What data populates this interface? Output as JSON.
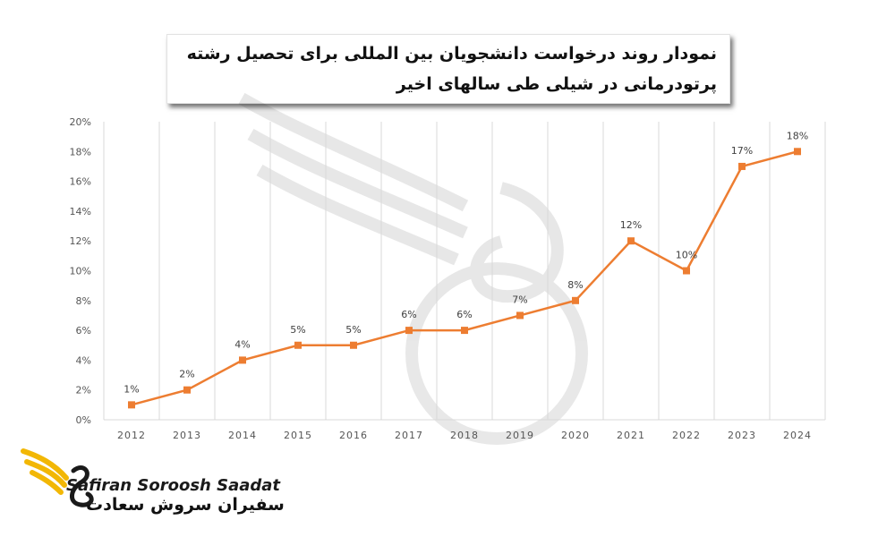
{
  "chart_data": {
    "type": "line",
    "title": "نمودار روند درخواست دانشجویان بین المللی برای تحصیل رشته پرتودرمانی در شیلی طی سالهای اخیر",
    "x": [
      "2012",
      "2013",
      "2014",
      "2015",
      "2016",
      "2017",
      "2018",
      "2019",
      "2020",
      "2021",
      "2022",
      "2023",
      "2024"
    ],
    "series": [
      {
        "values": [
          1,
          2,
          4,
          5,
          5,
          6,
          6,
          7,
          8,
          12,
          10,
          17,
          18
        ]
      }
    ],
    "data_labels": [
      "1%",
      "2%",
      "4%",
      "5%",
      "5%",
      "6%",
      "6%",
      "7%",
      "8%",
      "12%",
      "10%",
      "17%",
      "18%"
    ],
    "y_ticks": [
      "0%",
      "2%",
      "4%",
      "6%",
      "8%",
      "10%",
      "12%",
      "14%",
      "16%",
      "18%",
      "20%"
    ],
    "ylim": [
      0,
      20
    ],
    "grid": "vertical",
    "line_color": "#ED7D31",
    "marker": "square"
  },
  "title_lines": [
    "نمودار روند درخواست دانشجویان بین المللی برای تحصیل رشته",
    "پرتودرمانی در شیلی طی سالهای اخیر"
  ],
  "logo": {
    "name_en": "Safiran Soroosh Saadat",
    "name_fa": "سفیران سروش سعادت",
    "color": "#F2B705"
  }
}
